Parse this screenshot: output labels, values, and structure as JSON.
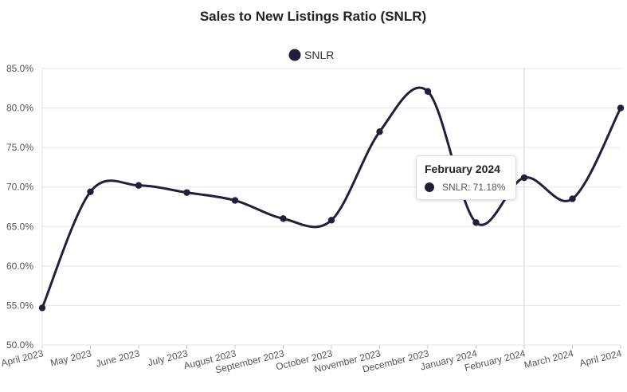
{
  "chart_data": {
    "type": "line",
    "title": "Sales to New Listings Ratio (SNLR)",
    "categories": [
      "April 2023",
      "May 2023",
      "June 2023",
      "July 2023",
      "August 2023",
      "September 2023",
      "October 2023",
      "November 2023",
      "December 2023",
      "January 2024",
      "February 2024",
      "March 2024",
      "April 2024"
    ],
    "series": [
      {
        "name": "SNLR",
        "color": "#221f3b",
        "values": [
          54.7,
          69.4,
          70.2,
          69.3,
          68.3,
          66.0,
          65.8,
          77.0,
          82.1,
          65.5,
          71.18,
          68.5,
          80.0
        ]
      }
    ],
    "ylim": [
      50,
      85
    ],
    "yticks": [
      "50.0%",
      "55.0%",
      "60.0%",
      "65.0%",
      "70.0%",
      "75.0%",
      "80.0%",
      "85.0%"
    ],
    "grid": true,
    "legend": "top-center",
    "tooltip": {
      "title": "February 2024",
      "label": "SNLR: 71.18%"
    }
  }
}
